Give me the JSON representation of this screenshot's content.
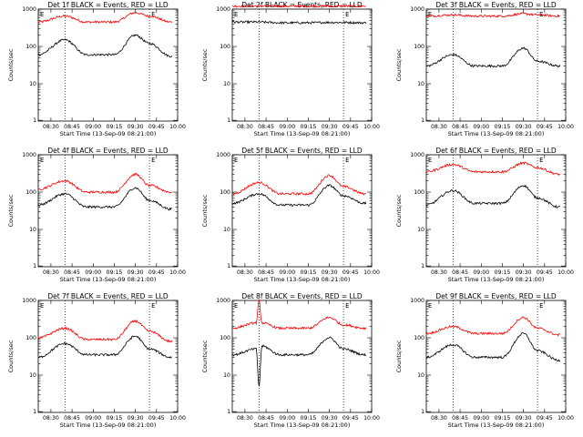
{
  "chart_data": [
    {
      "type": "line",
      "title": "Det 1f BLACK = Events, RED = LLD",
      "xlabel": "Start Time (13-Sep-09 08:21:00)",
      "ylabel": "Counts/sec",
      "yscale": "log",
      "ylim": [
        1,
        1000
      ],
      "xticks": [
        "08:30",
        "08:45",
        "09:00",
        "09:15",
        "09:30",
        "09:45",
        "10:00"
      ],
      "yticks": [
        "1",
        "10",
        "100",
        "1000"
      ],
      "markers_dotted": [
        "08:40",
        "09:40"
      ],
      "corner_labels": [
        "E",
        "E"
      ],
      "series": [
        {
          "name": "RED",
          "color": "#ff0000",
          "x": [
            "08:21",
            "08:40",
            "08:55",
            "09:15",
            "09:30",
            "09:40",
            "09:55"
          ],
          "y": [
            450,
            650,
            450,
            450,
            800,
            650,
            450
          ]
        },
        {
          "name": "BLACK",
          "color": "#000000",
          "x": [
            "08:21",
            "08:40",
            "08:55",
            "09:15",
            "09:30",
            "09:40",
            "09:55"
          ],
          "y": [
            60,
            150,
            60,
            60,
            200,
            120,
            55
          ]
        }
      ]
    },
    {
      "type": "line",
      "title": "Det 2f BLACK = Events, RED = LLD",
      "xlabel": "Start Time (13-Sep-09 08:21:00)",
      "ylabel": "Counts/sec",
      "yscale": "log",
      "ylim": [
        1,
        1000
      ],
      "xticks": [
        "08:30",
        "08:45",
        "09:00",
        "09:15",
        "09:30",
        "09:45",
        "10:00"
      ],
      "yticks": [
        "1",
        "10",
        "100",
        "1000"
      ],
      "markers_dotted": [
        "08:40",
        "09:40"
      ],
      "corner_labels": [
        "E",
        "E"
      ],
      "series": [
        {
          "name": "RED",
          "color": "#ff0000",
          "x": [
            "08:21",
            "08:40",
            "08:55",
            "09:15",
            "09:30",
            "09:40",
            "09:55"
          ],
          "y": [
            1200,
            1200,
            1200,
            1200,
            1200,
            1200,
            1200
          ]
        },
        {
          "name": "BLACK",
          "color": "#000000",
          "x": [
            "08:21",
            "08:40",
            "08:55",
            "09:15",
            "09:30",
            "09:40",
            "09:55"
          ],
          "y": [
            450,
            450,
            430,
            430,
            440,
            440,
            430
          ]
        }
      ]
    },
    {
      "type": "line",
      "title": "Det 3f BLACK = Events, RED = LLD",
      "xlabel": "Start Time (13-Sep-09 08:21:00)",
      "ylabel": "Counts/sec",
      "yscale": "log",
      "ylim": [
        1,
        1000
      ],
      "xticks": [
        "08:30",
        "08:45",
        "09:00",
        "09:15",
        "09:30",
        "09:45",
        "10:00"
      ],
      "yticks": [
        "1",
        "10",
        "100",
        "1000"
      ],
      "markers_dotted": [
        "08:40",
        "09:40"
      ],
      "corner_labels": [
        "E",
        "E"
      ],
      "series": [
        {
          "name": "RED",
          "color": "#ff0000",
          "x": [
            "08:21",
            "08:40",
            "08:55",
            "09:15",
            "09:30",
            "09:40",
            "09:55"
          ],
          "y": [
            650,
            700,
            650,
            650,
            750,
            700,
            650
          ]
        },
        {
          "name": "BLACK",
          "color": "#000000",
          "x": [
            "08:21",
            "08:40",
            "08:55",
            "09:15",
            "09:30",
            "09:40",
            "09:55"
          ],
          "y": [
            30,
            60,
            30,
            30,
            90,
            40,
            30
          ]
        }
      ]
    },
    {
      "type": "line",
      "title": "Det 4f BLACK = Events, RED = LLD",
      "xlabel": "Start Time (13-Sep-09 08:21:00)",
      "ylabel": "Counts/sec",
      "yscale": "log",
      "ylim": [
        1,
        1000
      ],
      "xticks": [
        "08:30",
        "08:45",
        "09:00",
        "09:15",
        "09:30",
        "09:45",
        "10:00"
      ],
      "yticks": [
        "1",
        "10",
        "100",
        "1000"
      ],
      "markers_dotted": [
        "08:40",
        "09:40"
      ],
      "corner_labels": [
        "E",
        "E"
      ],
      "series": [
        {
          "name": "RED",
          "color": "#ff0000",
          "x": [
            "08:21",
            "08:40",
            "08:55",
            "09:15",
            "09:30",
            "09:40",
            "09:55"
          ],
          "y": [
            120,
            200,
            100,
            100,
            300,
            150,
            100
          ]
        },
        {
          "name": "BLACK",
          "color": "#000000",
          "x": [
            "08:21",
            "08:40",
            "08:55",
            "09:15",
            "09:30",
            "09:40",
            "09:55"
          ],
          "y": [
            45,
            90,
            40,
            40,
            130,
            60,
            35
          ]
        }
      ]
    },
    {
      "type": "line",
      "title": "Det 5f BLACK = Events, RED = LLD",
      "xlabel": "Start Time (13-Sep-09 08:21:00)",
      "ylabel": "Counts/sec",
      "yscale": "log",
      "ylim": [
        1,
        1000
      ],
      "xticks": [
        "08:30",
        "08:45",
        "09:00",
        "09:15",
        "09:30",
        "09:45",
        "10:00"
      ],
      "yticks": [
        "1",
        "10",
        "100",
        "1000"
      ],
      "markers_dotted": [
        "08:40",
        "09:40"
      ],
      "corner_labels": [
        "E",
        "E"
      ],
      "series": [
        {
          "name": "RED",
          "color": "#ff0000",
          "x": [
            "08:21",
            "08:40",
            "08:55",
            "09:15",
            "09:30",
            "09:40",
            "09:55"
          ],
          "y": [
            90,
            180,
            90,
            90,
            280,
            140,
            90
          ]
        },
        {
          "name": "BLACK",
          "color": "#000000",
          "x": [
            "08:21",
            "08:40",
            "08:55",
            "09:15",
            "09:30",
            "09:40",
            "09:55"
          ],
          "y": [
            50,
            90,
            45,
            45,
            150,
            80,
            50
          ]
        }
      ]
    },
    {
      "type": "line",
      "title": "Det 6f BLACK = Events, RED = LLD",
      "xlabel": "Start Time (13-Sep-09 08:21:00)",
      "ylabel": "Counts/sec",
      "yscale": "log",
      "ylim": [
        1,
        1000
      ],
      "xticks": [
        "08:30",
        "08:45",
        "09:00",
        "09:15",
        "09:30",
        "09:45",
        "10:00"
      ],
      "yticks": [
        "1",
        "10",
        "100",
        "1000"
      ],
      "markers_dotted": [
        "08:40",
        "09:40"
      ],
      "corner_labels": [
        "E",
        "E"
      ],
      "series": [
        {
          "name": "RED",
          "color": "#ff0000",
          "x": [
            "08:21",
            "08:40",
            "08:55",
            "09:15",
            "09:30",
            "09:40",
            "09:55"
          ],
          "y": [
            350,
            550,
            350,
            350,
            600,
            450,
            300
          ]
        },
        {
          "name": "BLACK",
          "color": "#000000",
          "x": [
            "08:21",
            "08:40",
            "08:55",
            "09:15",
            "09:30",
            "09:40",
            "09:55"
          ],
          "y": [
            45,
            110,
            50,
            50,
            150,
            70,
            40
          ]
        }
      ]
    },
    {
      "type": "line",
      "title": "Det 7f BLACK = Events, RED = LLD",
      "xlabel": "Start Time (13-Sep-09 08:21:00)",
      "ylabel": "Counts/sec",
      "yscale": "log",
      "ylim": [
        1,
        1000
      ],
      "xticks": [
        "08:30",
        "08:45",
        "09:00",
        "09:15",
        "09:30",
        "09:45",
        "10:00"
      ],
      "yticks": [
        "1",
        "10",
        "100",
        "1000"
      ],
      "markers_dotted": [
        "08:40",
        "09:40"
      ],
      "corner_labels": [
        "E",
        "E"
      ],
      "series": [
        {
          "name": "RED",
          "color": "#ff0000",
          "x": [
            "08:21",
            "08:40",
            "08:55",
            "09:15",
            "09:30",
            "09:40",
            "09:55"
          ],
          "y": [
            100,
            180,
            90,
            90,
            280,
            150,
            80
          ]
        },
        {
          "name": "BLACK",
          "color": "#000000",
          "x": [
            "08:21",
            "08:40",
            "08:55",
            "09:15",
            "09:30",
            "09:40",
            "09:55"
          ],
          "y": [
            30,
            70,
            35,
            35,
            110,
            50,
            30
          ]
        }
      ]
    },
    {
      "type": "line",
      "title": "Det 8f BLACK = Events, RED = LLD",
      "xlabel": "Start Time (13-Sep-09 08:21:00)",
      "ylabel": "Counts/sec",
      "yscale": "log",
      "ylim": [
        1,
        1000
      ],
      "xticks": [
        "08:30",
        "08:45",
        "09:00",
        "09:15",
        "09:30",
        "09:45",
        "10:00"
      ],
      "yticks": [
        "1",
        "10",
        "100",
        "1000"
      ],
      "markers_dotted": [
        "08:40",
        "09:40"
      ],
      "corner_labels": [
        "E",
        "E"
      ],
      "series": [
        {
          "name": "RED",
          "color": "#ff0000",
          "x": [
            "08:21",
            "08:38",
            "08:40",
            "08:42",
            "08:55",
            "09:15",
            "09:30",
            "09:40",
            "09:55"
          ],
          "y": [
            180,
            250,
            1000,
            250,
            180,
            180,
            350,
            220,
            180
          ]
        },
        {
          "name": "BLACK",
          "color": "#000000",
          "x": [
            "08:21",
            "08:38",
            "08:40",
            "08:42",
            "08:55",
            "09:15",
            "09:30",
            "09:40",
            "09:55"
          ],
          "y": [
            35,
            50,
            5,
            60,
            35,
            35,
            100,
            50,
            35
          ]
        }
      ]
    },
    {
      "type": "line",
      "title": "Det 9f BLACK = Events, RED = LLD",
      "xlabel": "Start Time (13-Sep-09 08:21:00)",
      "ylabel": "Counts/sec",
      "yscale": "log",
      "ylim": [
        1,
        1000
      ],
      "xticks": [
        "08:30",
        "08:45",
        "09:00",
        "09:15",
        "09:30",
        "09:45",
        "10:00"
      ],
      "yticks": [
        "1",
        "10",
        "100",
        "1000"
      ],
      "markers_dotted": [
        "08:40",
        "09:40"
      ],
      "corner_labels": [
        "E",
        "E"
      ],
      "series": [
        {
          "name": "RED",
          "color": "#ff0000",
          "x": [
            "08:21",
            "08:40",
            "08:55",
            "09:15",
            "09:30",
            "09:40",
            "09:55"
          ],
          "y": [
            130,
            200,
            130,
            130,
            350,
            180,
            120
          ]
        },
        {
          "name": "BLACK",
          "color": "#000000",
          "x": [
            "08:21",
            "08:40",
            "08:55",
            "09:15",
            "09:30",
            "09:40",
            "09:55"
          ],
          "y": [
            30,
            65,
            30,
            30,
            130,
            45,
            25
          ]
        }
      ]
    }
  ]
}
